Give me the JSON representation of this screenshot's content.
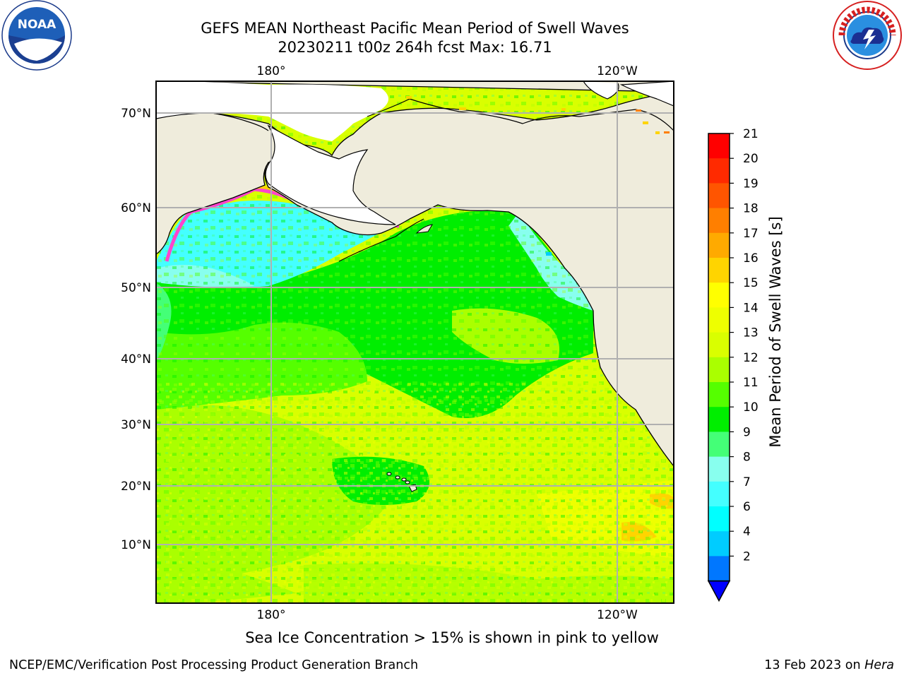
{
  "header": {
    "title_line1": "GEFS MEAN Northeast Pacific Mean Period of Swell Waves",
    "title_line2": "20230211 t00z 264h fcst   Max: 16.71"
  },
  "map": {
    "top_lon_labels": [
      "180°",
      "120°W"
    ],
    "bottom_lon_labels": [
      "180°",
      "120°W"
    ],
    "lat_labels": [
      "70°N",
      "60°N",
      "50°N",
      "40°N",
      "30°N",
      "20°N",
      "10°N"
    ]
  },
  "colorbar": {
    "title": "Mean Period of Swell Waves [s]",
    "ticks": [
      "21",
      "20",
      "19",
      "18",
      "17",
      "16",
      "15",
      "14",
      "13",
      "12",
      "11",
      "10",
      "9",
      "8",
      "7",
      "6",
      "4",
      "2"
    ],
    "colors": [
      "#ff0000",
      "#ff2a00",
      "#ff5500",
      "#ff7f00",
      "#ffaa00",
      "#ffd400",
      "#ffff00",
      "#eeff00",
      "#d9ff00",
      "#aaff00",
      "#55ff00",
      "#00ee00",
      "#44ff77",
      "#88ffee",
      "#44ffff",
      "#00ffff",
      "#00ccff",
      "#0077ff"
    ],
    "under_color": "#0000ff"
  },
  "legend_colors": {
    "land": "#efecdc",
    "ice": "#ff44cc",
    "grid": "#b0b0b0"
  },
  "footer": {
    "note": "Sea Ice Concentration > 15% is shown in pink to yellow",
    "credit_left": "NCEP/EMC/Verification Post Processing Product Generation Branch",
    "credit_date": "13 Feb 2023 on ",
    "credit_machine": "Hera"
  }
}
